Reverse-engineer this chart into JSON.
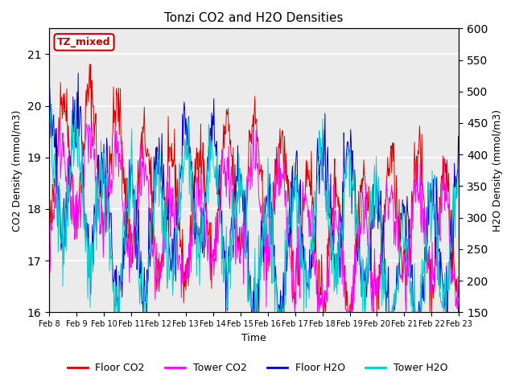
{
  "title": "Tonzi CO2 and H2O Densities",
  "xlabel": "Time",
  "ylabel_left": "CO2 Density (mmol/m3)",
  "ylabel_right": "H2O Density (mmol/m3)",
  "ylim_left": [
    16.0,
    21.5
  ],
  "ylim_right": [
    150,
    600
  ],
  "annotation_text": "TZ_mixed",
  "annotation_color": "#cc0000",
  "colors": {
    "floor_co2": "#dd0000",
    "tower_co2": "#ff00ff",
    "floor_h2o": "#0000cc",
    "tower_h2o": "#00cccc"
  },
  "legend_labels": [
    "Floor CO2",
    "Tower CO2",
    "Floor H2O",
    "Tower H2O"
  ],
  "x_tick_labels": [
    "Feb 8",
    "Feb 9",
    "Feb 10",
    "Feb 11",
    "Feb 12",
    "Feb 13",
    "Feb 14",
    "Feb 15",
    "Feb 16",
    "Feb 17",
    "Feb 18",
    "Feb 19",
    "Feb 20",
    "Feb 21",
    "Feb 22",
    "Feb 23"
  ],
  "n_days": 15,
  "points_per_day": 48,
  "background_color": "#ebebeb",
  "grid_color": "#ffffff",
  "seed": 42
}
